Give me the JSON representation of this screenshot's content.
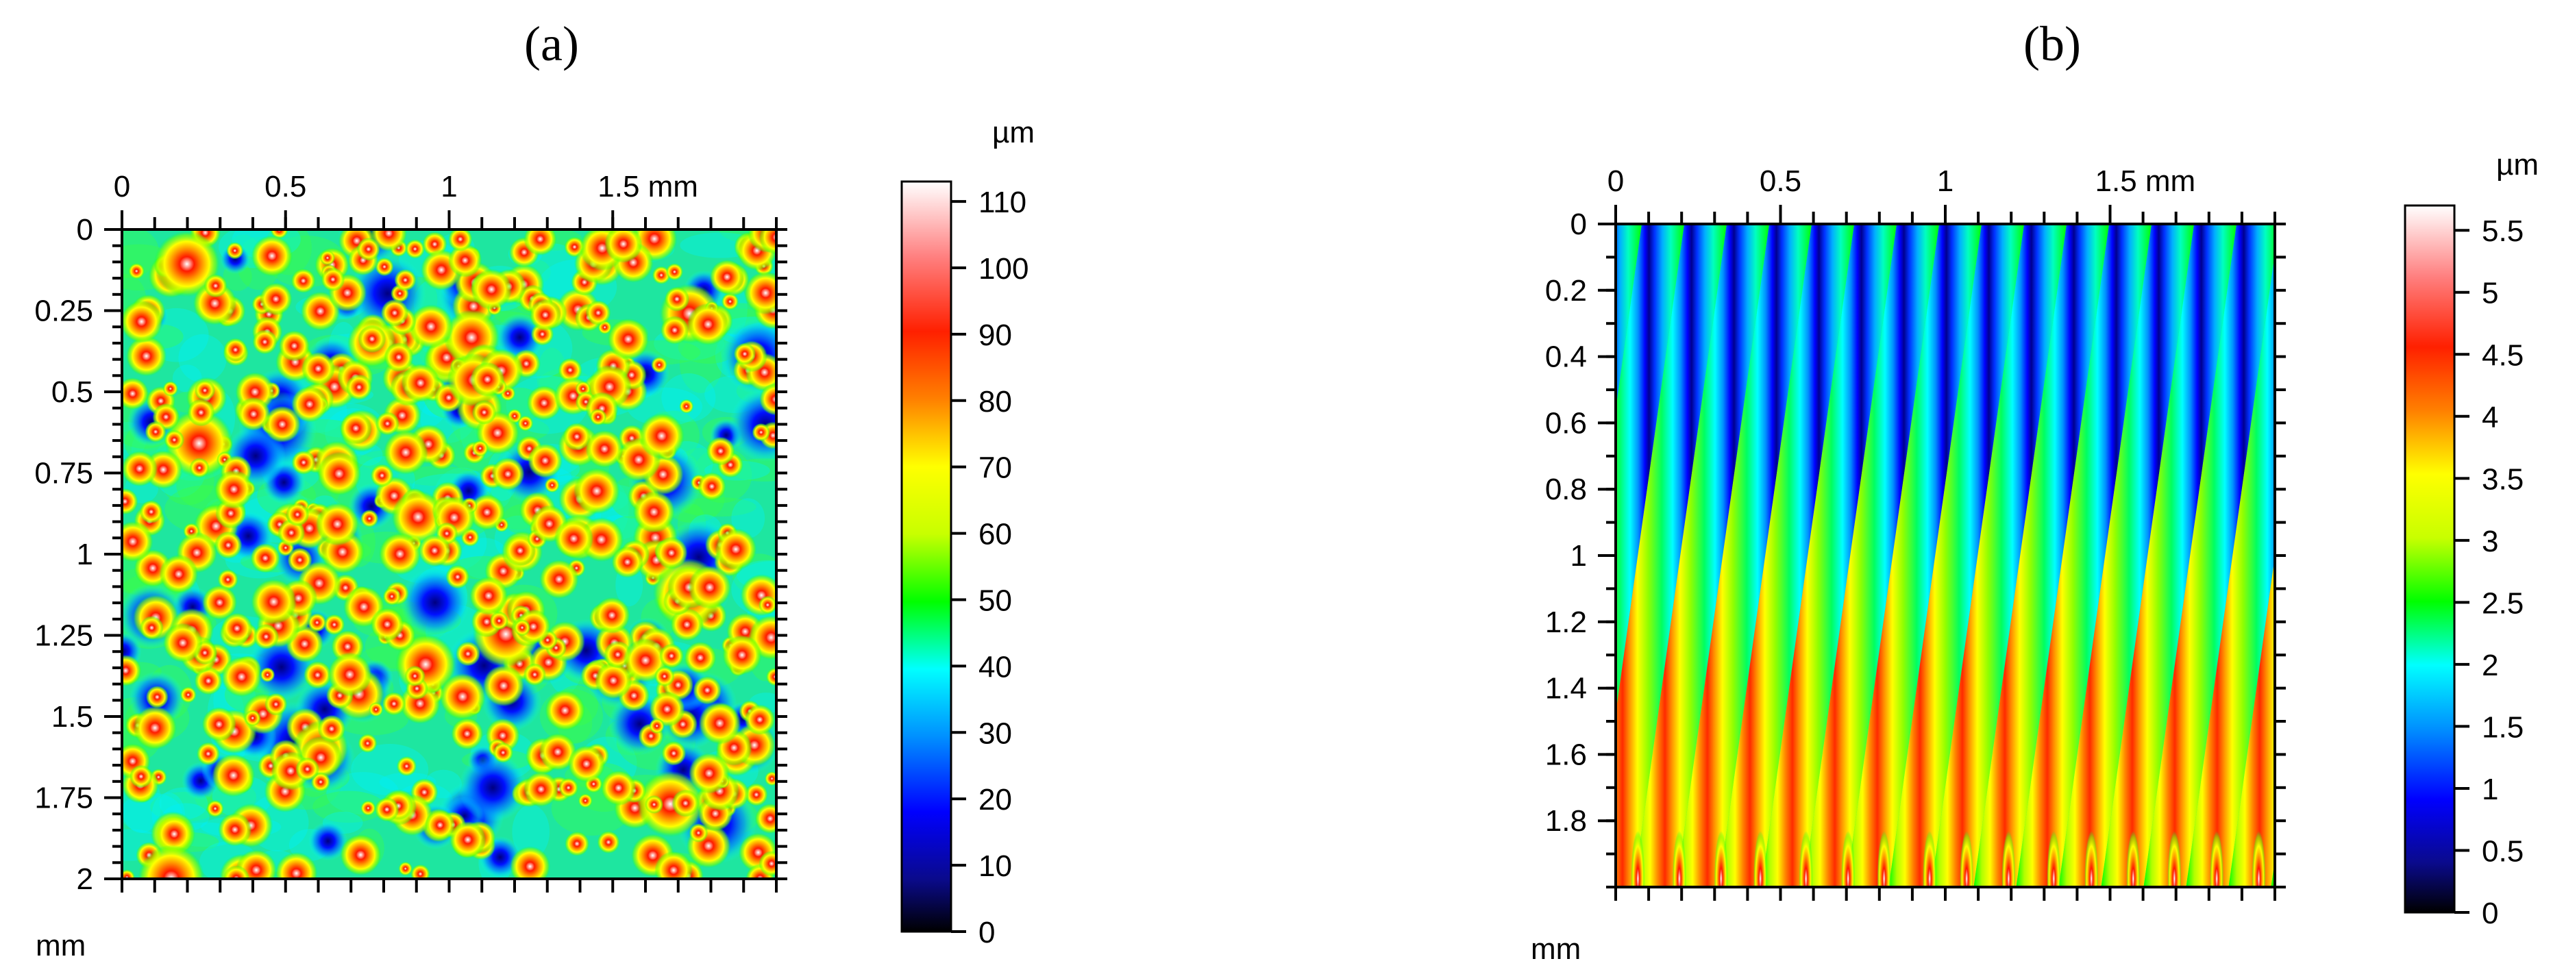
{
  "chart_data": [
    {
      "panel_label": "(a)",
      "type": "heatmap",
      "x_ticks": [
        "0",
        "0.5",
        "1",
        "1.5 mm"
      ],
      "x_tick_values": [
        0,
        0.5,
        1,
        1.5
      ],
      "y_ticks": [
        "0",
        "0.25",
        "0.5",
        "0.75",
        "1",
        "1.25",
        "1.5",
        "1.75",
        "2"
      ],
      "y_tick_values": [
        0,
        0.25,
        0.5,
        0.75,
        1,
        1.25,
        1.5,
        1.75,
        2
      ],
      "xlim": [
        0,
        2
      ],
      "ylim": [
        0,
        2
      ],
      "x_minor_step": 0.1,
      "y_minor_step": 0.05,
      "axis_unit": "mm",
      "colorbar": {
        "unit": "µm",
        "ticks": [
          "0",
          "10",
          "20",
          "30",
          "40",
          "50",
          "60",
          "70",
          "80",
          "90",
          "100",
          "110"
        ],
        "tick_values": [
          0,
          10,
          20,
          30,
          40,
          50,
          60,
          70,
          80,
          90,
          100,
          110
        ],
        "range": [
          0,
          113
        ],
        "palette": [
          "#000000",
          "#0a0a8c",
          "#0000ff",
          "#0090ff",
          "#00ffff",
          "#00ff00",
          "#c8ff00",
          "#ffff00",
          "#ff8000",
          "#ff2000",
          "#ff8080",
          "#ffffff"
        ]
      },
      "texture": "dense random peaks (isotropic), heights mostly 40–90 µm, isolated maxima up to ~110 µm"
    },
    {
      "panel_label": "(b)",
      "type": "heatmap",
      "x_ticks": [
        "0",
        "0.5",
        "1",
        "1.5 mm"
      ],
      "x_tick_values": [
        0,
        0.5,
        1,
        1.5
      ],
      "y_ticks": [
        "0",
        "0.2",
        "0.4",
        "0.6",
        "0.8",
        "1",
        "1.2",
        "1.4",
        "1.6",
        "1.8"
      ],
      "y_tick_values": [
        0,
        0.2,
        0.4,
        0.6,
        0.8,
        1,
        1.2,
        1.4,
        1.6,
        1.8
      ],
      "xlim": [
        0,
        2
      ],
      "ylim": [
        0,
        2
      ],
      "x_minor_step": 0.1,
      "y_minor_step": 0.1,
      "axis_unit": "mm",
      "colorbar": {
        "unit": "µm",
        "ticks": [
          "0",
          "0.5",
          "1",
          "1.5",
          "2",
          "2.5",
          "3",
          "3.5",
          "4",
          "4.5",
          "5",
          "5.5"
        ],
        "tick_values": [
          0,
          0.5,
          1,
          1.5,
          2,
          2.5,
          3,
          3.5,
          4,
          4.5,
          5,
          5.5
        ],
        "range": [
          0,
          5.7
        ],
        "palette": [
          "#000000",
          "#0a0a8c",
          "#0000ff",
          "#0090ff",
          "#00ffff",
          "#00ff00",
          "#c8ff00",
          "#ffff00",
          "#ff8000",
          "#ff2000",
          "#ff8080",
          "#ffffff"
        ]
      },
      "texture": "periodic oblique grooves (~16 across 2 mm), heights 0–5.5 µm, peaks brightest near bottom edge"
    }
  ]
}
